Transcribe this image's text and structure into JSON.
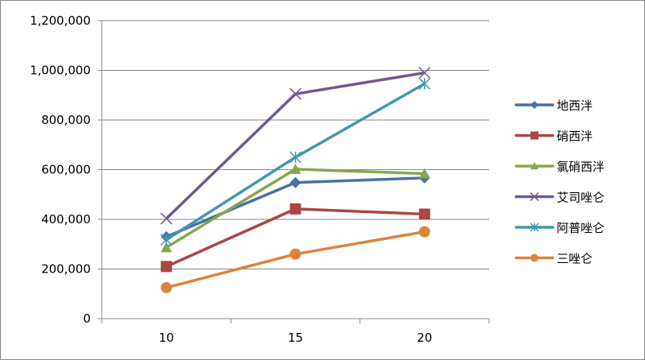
{
  "chart_data": {
    "type": "line",
    "title": "",
    "xlabel": "",
    "ylabel": "",
    "categories": [
      "10",
      "15",
      "20"
    ],
    "ylim": [
      0,
      1200000
    ],
    "yticks": [
      "0",
      "200,000",
      "400,000",
      "600,000",
      "800,000",
      "1,000,000",
      "1,200,000"
    ],
    "grid": true,
    "legend_position": "right",
    "series": [
      {
        "name": "地西泮",
        "color": "#4572A7",
        "marker": "diamond",
        "values": [
          330000,
          548000,
          567000
        ]
      },
      {
        "name": "硝西泮",
        "color": "#AA4643",
        "marker": "square",
        "values": [
          210000,
          442000,
          421000
        ]
      },
      {
        "name": "氯硝西泮",
        "color": "#89A54E",
        "marker": "triangle",
        "values": [
          287000,
          602000,
          584000
        ]
      },
      {
        "name": "艾司唑仑",
        "color": "#71588F",
        "marker": "x",
        "values": [
          403000,
          905000,
          990000
        ]
      },
      {
        "name": "阿普唑仑",
        "color": "#4198AF",
        "marker": "star",
        "values": [
          318000,
          650000,
          946000
        ]
      },
      {
        "name": "三唑仑",
        "color": "#DB843D",
        "marker": "circle",
        "values": [
          125000,
          260000,
          350000
        ]
      }
    ]
  }
}
